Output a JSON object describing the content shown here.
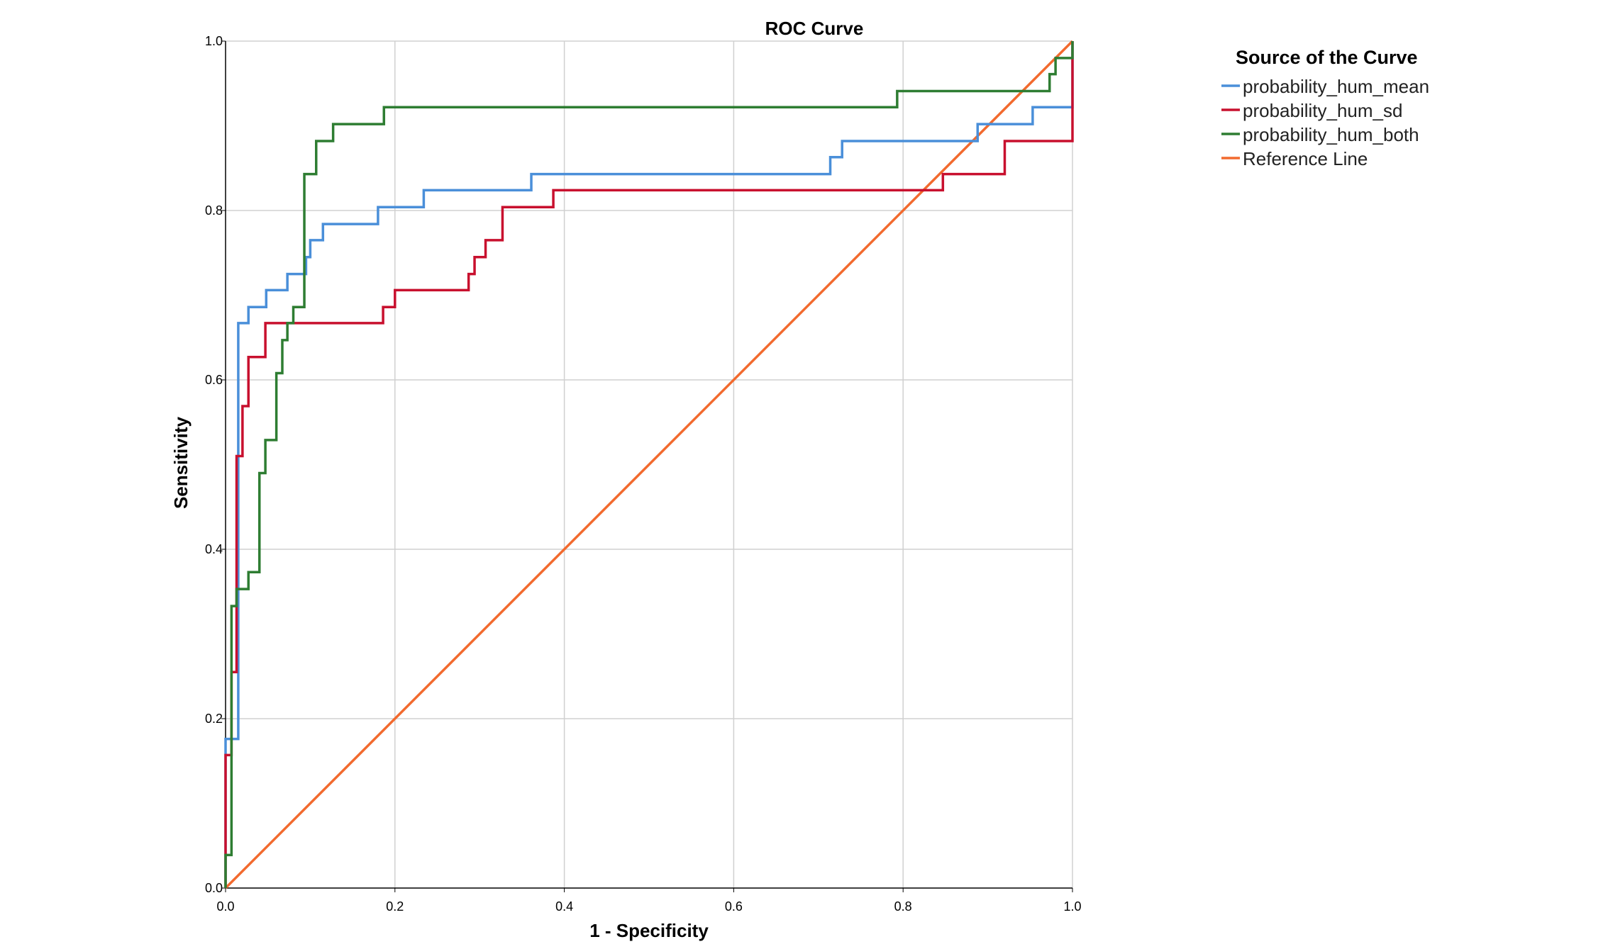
{
  "chart_data": {
    "type": "line",
    "title": "ROC Curve",
    "xlabel": "1 - Specificity",
    "ylabel": "Sensitivity",
    "xlim": [
      0,
      1
    ],
    "ylim": [
      0,
      1
    ],
    "x_ticks": [
      "0.0",
      "0.2",
      "0.4",
      "0.6",
      "0.8",
      "1.0"
    ],
    "y_ticks": [
      "0.0",
      "0.2",
      "0.4",
      "0.6",
      "0.8",
      "1.0"
    ],
    "grid": true,
    "legend_title": "Source of the Curve",
    "legend_position": "top-right outside",
    "series": [
      {
        "name": "probability_hum_mean",
        "color": "#4a8fd9",
        "x": [
          0,
          0,
          0.015,
          0.015,
          0.027,
          0.027,
          0.048,
          0.048,
          0.073,
          0.073,
          0.095,
          0.095,
          0.1,
          0.1,
          0.115,
          0.115,
          0.18,
          0.18,
          0.234,
          0.234,
          0.361,
          0.361,
          0.714,
          0.714,
          0.728,
          0.728,
          0.888,
          0.888,
          0.953,
          0.953,
          1.0,
          1.0
        ],
        "y": [
          0,
          0.176,
          0.176,
          0.667,
          0.667,
          0.686,
          0.686,
          0.706,
          0.706,
          0.725,
          0.725,
          0.745,
          0.745,
          0.765,
          0.765,
          0.784,
          0.784,
          0.804,
          0.804,
          0.824,
          0.824,
          0.843,
          0.843,
          0.863,
          0.863,
          0.882,
          0.882,
          0.902,
          0.902,
          0.922,
          0.922,
          1.0
        ]
      },
      {
        "name": "probability_hum_sd",
        "color": "#c8102e",
        "x": [
          0,
          0,
          0.007,
          0.007,
          0.013,
          0.013,
          0.02,
          0.02,
          0.027,
          0.027,
          0.047,
          0.047,
          0.186,
          0.186,
          0.2,
          0.2,
          0.287,
          0.287,
          0.294,
          0.294,
          0.307,
          0.307,
          0.327,
          0.327,
          0.387,
          0.387,
          0.847,
          0.847,
          0.92,
          0.92,
          1.0,
          1.0
        ],
        "y": [
          0,
          0.157,
          0.157,
          0.255,
          0.255,
          0.51,
          0.51,
          0.569,
          0.569,
          0.627,
          0.627,
          0.667,
          0.667,
          0.686,
          0.686,
          0.706,
          0.706,
          0.725,
          0.725,
          0.745,
          0.745,
          0.765,
          0.765,
          0.804,
          0.804,
          0.824,
          0.824,
          0.843,
          0.843,
          0.882,
          0.882,
          1.0
        ]
      },
      {
        "name": "probability_hum_both",
        "color": "#2e7d32",
        "x": [
          0,
          0,
          0.007,
          0.007,
          0.013,
          0.013,
          0.027,
          0.027,
          0.04,
          0.04,
          0.047,
          0.047,
          0.06,
          0.06,
          0.067,
          0.067,
          0.073,
          0.073,
          0.08,
          0.08,
          0.093,
          0.093,
          0.107,
          0.107,
          0.127,
          0.127,
          0.187,
          0.187,
          0.793,
          0.793,
          0.973,
          0.973,
          0.98,
          0.98,
          1.0,
          1.0
        ],
        "y": [
          0,
          0.039,
          0.039,
          0.333,
          0.333,
          0.353,
          0.353,
          0.373,
          0.373,
          0.49,
          0.49,
          0.529,
          0.529,
          0.608,
          0.608,
          0.647,
          0.647,
          0.667,
          0.667,
          0.686,
          0.686,
          0.843,
          0.843,
          0.882,
          0.882,
          0.902,
          0.902,
          0.922,
          0.922,
          0.941,
          0.941,
          0.961,
          0.961,
          0.98,
          0.98,
          1.0
        ]
      },
      {
        "name": "Reference Line",
        "color": "#f26a2e",
        "x": [
          0,
          1
        ],
        "y": [
          0,
          1
        ]
      }
    ]
  }
}
